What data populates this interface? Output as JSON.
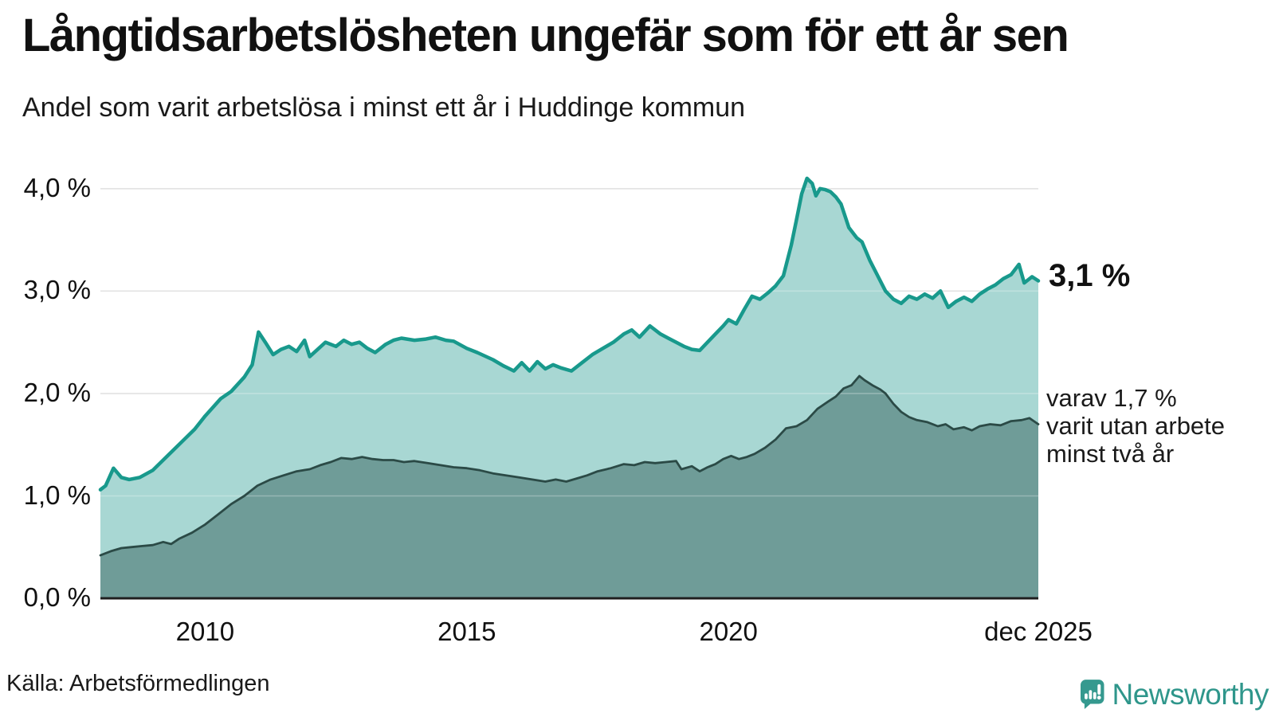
{
  "chart_data": {
    "type": "area",
    "title": "Långtidsarbetslösheten ungefär som för ett år sen",
    "subtitle": "Andel som varit arbetslösa i minst ett år i Huddinge kommun",
    "legend": "none",
    "grid": true,
    "x_axis": {
      "unit": "year",
      "range": [
        2008.0,
        2025.92
      ],
      "ticks": [
        {
          "x": 2010,
          "label": "2010"
        },
        {
          "x": 2015,
          "label": "2015"
        },
        {
          "x": 2020,
          "label": "2020"
        },
        {
          "x": 2025.92,
          "label": "dec 2025"
        }
      ]
    },
    "y_axis": {
      "unit": "percent",
      "range": [
        0,
        4.3
      ],
      "ticks": [
        {
          "y": 0,
          "label": "0,0 %"
        },
        {
          "y": 1,
          "label": "1,0 %"
        },
        {
          "y": 2,
          "label": "2,0 %"
        },
        {
          "y": 3,
          "label": "3,0 %"
        },
        {
          "y": 4,
          "label": "4,0 %"
        }
      ],
      "gridline_color": "#d9d9d9",
      "axis_line_color": "#1f1f1f"
    },
    "annotations": {
      "end_value": "3,1 %",
      "secondary_lines": [
        "varav 1,7 %",
        "varit utan arbete",
        "minst två år"
      ]
    },
    "series": [
      {
        "id": "arbetslosa_minst_ett_ar",
        "end_value": 3.1,
        "line_color": "#18998c",
        "fill_color": "#a5d6d2",
        "line_width": 4.5,
        "points": [
          [
            2008.0,
            1.06
          ],
          [
            2008.1,
            1.1
          ],
          [
            2008.25,
            1.27
          ],
          [
            2008.4,
            1.18
          ],
          [
            2008.55,
            1.16
          ],
          [
            2008.75,
            1.18
          ],
          [
            2009.0,
            1.25
          ],
          [
            2009.3,
            1.4
          ],
          [
            2009.6,
            1.55
          ],
          [
            2009.8,
            1.65
          ],
          [
            2010.0,
            1.78
          ],
          [
            2010.3,
            1.95
          ],
          [
            2010.5,
            2.02
          ],
          [
            2010.75,
            2.16
          ],
          [
            2010.9,
            2.28
          ],
          [
            2011.02,
            2.6
          ],
          [
            2011.15,
            2.5
          ],
          [
            2011.3,
            2.38
          ],
          [
            2011.45,
            2.43
          ],
          [
            2011.6,
            2.46
          ],
          [
            2011.75,
            2.41
          ],
          [
            2011.9,
            2.52
          ],
          [
            2012.0,
            2.36
          ],
          [
            2012.15,
            2.43
          ],
          [
            2012.3,
            2.5
          ],
          [
            2012.5,
            2.46
          ],
          [
            2012.65,
            2.52
          ],
          [
            2012.8,
            2.48
          ],
          [
            2012.95,
            2.5
          ],
          [
            2013.1,
            2.44
          ],
          [
            2013.25,
            2.4
          ],
          [
            2013.45,
            2.48
          ],
          [
            2013.6,
            2.52
          ],
          [
            2013.75,
            2.54
          ],
          [
            2014.0,
            2.52
          ],
          [
            2014.2,
            2.53
          ],
          [
            2014.4,
            2.55
          ],
          [
            2014.6,
            2.52
          ],
          [
            2014.75,
            2.51
          ],
          [
            2015.0,
            2.44
          ],
          [
            2015.2,
            2.4
          ],
          [
            2015.5,
            2.33
          ],
          [
            2015.7,
            2.27
          ],
          [
            2015.9,
            2.22
          ],
          [
            2016.05,
            2.3
          ],
          [
            2016.2,
            2.22
          ],
          [
            2016.35,
            2.31
          ],
          [
            2016.5,
            2.24
          ],
          [
            2016.65,
            2.28
          ],
          [
            2016.8,
            2.25
          ],
          [
            2017.0,
            2.22
          ],
          [
            2017.2,
            2.3
          ],
          [
            2017.4,
            2.38
          ],
          [
            2017.6,
            2.44
          ],
          [
            2017.8,
            2.5
          ],
          [
            2018.0,
            2.58
          ],
          [
            2018.15,
            2.62
          ],
          [
            2018.3,
            2.55
          ],
          [
            2018.5,
            2.66
          ],
          [
            2018.7,
            2.58
          ],
          [
            2018.85,
            2.54
          ],
          [
            2019.0,
            2.5
          ],
          [
            2019.15,
            2.46
          ],
          [
            2019.3,
            2.43
          ],
          [
            2019.45,
            2.42
          ],
          [
            2019.6,
            2.5
          ],
          [
            2019.75,
            2.58
          ],
          [
            2019.9,
            2.66
          ],
          [
            2020.0,
            2.72
          ],
          [
            2020.15,
            2.68
          ],
          [
            2020.3,
            2.82
          ],
          [
            2020.45,
            2.95
          ],
          [
            2020.6,
            2.92
          ],
          [
            2020.75,
            2.98
          ],
          [
            2020.9,
            3.05
          ],
          [
            2021.05,
            3.15
          ],
          [
            2021.2,
            3.45
          ],
          [
            2021.3,
            3.7
          ],
          [
            2021.4,
            3.95
          ],
          [
            2021.5,
            4.1
          ],
          [
            2021.6,
            4.05
          ],
          [
            2021.67,
            3.93
          ],
          [
            2021.75,
            4.0
          ],
          [
            2021.85,
            3.99
          ],
          [
            2021.95,
            3.97
          ],
          [
            2022.05,
            3.92
          ],
          [
            2022.15,
            3.85
          ],
          [
            2022.3,
            3.62
          ],
          [
            2022.45,
            3.52
          ],
          [
            2022.55,
            3.48
          ],
          [
            2022.7,
            3.3
          ],
          [
            2022.85,
            3.15
          ],
          [
            2023.0,
            3.0
          ],
          [
            2023.15,
            2.92
          ],
          [
            2023.3,
            2.88
          ],
          [
            2023.45,
            2.95
          ],
          [
            2023.6,
            2.92
          ],
          [
            2023.75,
            2.97
          ],
          [
            2023.9,
            2.93
          ],
          [
            2024.05,
            3.0
          ],
          [
            2024.2,
            2.84
          ],
          [
            2024.35,
            2.9
          ],
          [
            2024.5,
            2.94
          ],
          [
            2024.65,
            2.9
          ],
          [
            2024.8,
            2.97
          ],
          [
            2024.95,
            3.02
          ],
          [
            2025.1,
            3.06
          ],
          [
            2025.25,
            3.12
          ],
          [
            2025.4,
            3.16
          ],
          [
            2025.55,
            3.26
          ],
          [
            2025.65,
            3.08
          ],
          [
            2025.8,
            3.14
          ],
          [
            2025.92,
            3.1
          ]
        ]
      },
      {
        "id": "utan_arbete_minst_tva_ar",
        "end_value": 1.7,
        "line_color": "#2b4a46",
        "fill_color": "#6d9a96",
        "line_width": 2.8,
        "points": [
          [
            2008.0,
            0.42
          ],
          [
            2008.2,
            0.46
          ],
          [
            2008.4,
            0.49
          ],
          [
            2008.6,
            0.5
          ],
          [
            2008.8,
            0.51
          ],
          [
            2009.0,
            0.52
          ],
          [
            2009.2,
            0.55
          ],
          [
            2009.35,
            0.53
          ],
          [
            2009.5,
            0.58
          ],
          [
            2009.75,
            0.64
          ],
          [
            2010.0,
            0.72
          ],
          [
            2010.25,
            0.82
          ],
          [
            2010.5,
            0.92
          ],
          [
            2010.75,
            1.0
          ],
          [
            2011.0,
            1.1
          ],
          [
            2011.25,
            1.16
          ],
          [
            2011.5,
            1.2
          ],
          [
            2011.75,
            1.24
          ],
          [
            2012.0,
            1.26
          ],
          [
            2012.2,
            1.3
          ],
          [
            2012.4,
            1.33
          ],
          [
            2012.6,
            1.37
          ],
          [
            2012.8,
            1.36
          ],
          [
            2013.0,
            1.38
          ],
          [
            2013.2,
            1.36
          ],
          [
            2013.4,
            1.35
          ],
          [
            2013.6,
            1.35
          ],
          [
            2013.8,
            1.33
          ],
          [
            2014.0,
            1.34
          ],
          [
            2014.25,
            1.32
          ],
          [
            2014.5,
            1.3
          ],
          [
            2014.75,
            1.28
          ],
          [
            2015.0,
            1.27
          ],
          [
            2015.25,
            1.25
          ],
          [
            2015.5,
            1.22
          ],
          [
            2015.75,
            1.2
          ],
          [
            2016.0,
            1.18
          ],
          [
            2016.25,
            1.16
          ],
          [
            2016.5,
            1.14
          ],
          [
            2016.7,
            1.16
          ],
          [
            2016.9,
            1.14
          ],
          [
            2017.1,
            1.17
          ],
          [
            2017.3,
            1.2
          ],
          [
            2017.5,
            1.24
          ],
          [
            2017.75,
            1.27
          ],
          [
            2018.0,
            1.31
          ],
          [
            2018.2,
            1.3
          ],
          [
            2018.4,
            1.33
          ],
          [
            2018.6,
            1.32
          ],
          [
            2018.8,
            1.33
          ],
          [
            2019.0,
            1.34
          ],
          [
            2019.1,
            1.26
          ],
          [
            2019.3,
            1.29
          ],
          [
            2019.45,
            1.24
          ],
          [
            2019.6,
            1.28
          ],
          [
            2019.75,
            1.31
          ],
          [
            2019.9,
            1.36
          ],
          [
            2020.05,
            1.39
          ],
          [
            2020.2,
            1.36
          ],
          [
            2020.35,
            1.38
          ],
          [
            2020.5,
            1.41
          ],
          [
            2020.7,
            1.47
          ],
          [
            2020.9,
            1.55
          ],
          [
            2021.1,
            1.66
          ],
          [
            2021.3,
            1.68
          ],
          [
            2021.5,
            1.74
          ],
          [
            2021.7,
            1.85
          ],
          [
            2021.9,
            1.92
          ],
          [
            2022.05,
            1.97
          ],
          [
            2022.2,
            2.05
          ],
          [
            2022.35,
            2.08
          ],
          [
            2022.5,
            2.17
          ],
          [
            2022.6,
            2.13
          ],
          [
            2022.75,
            2.08
          ],
          [
            2022.9,
            2.04
          ],
          [
            2023.0,
            2.0
          ],
          [
            2023.15,
            1.9
          ],
          [
            2023.3,
            1.82
          ],
          [
            2023.45,
            1.77
          ],
          [
            2023.6,
            1.74
          ],
          [
            2023.8,
            1.72
          ],
          [
            2024.0,
            1.68
          ],
          [
            2024.15,
            1.7
          ],
          [
            2024.3,
            1.65
          ],
          [
            2024.5,
            1.67
          ],
          [
            2024.65,
            1.64
          ],
          [
            2024.8,
            1.68
          ],
          [
            2025.0,
            1.7
          ],
          [
            2025.2,
            1.69
          ],
          [
            2025.4,
            1.73
          ],
          [
            2025.6,
            1.74
          ],
          [
            2025.75,
            1.76
          ],
          [
            2025.92,
            1.7
          ]
        ]
      }
    ]
  },
  "source": {
    "label": "Källa: Arbetsförmedlingen"
  },
  "brand": {
    "label": "Newsworthy",
    "color": "#2f968b",
    "icon_color": "#35998f"
  }
}
